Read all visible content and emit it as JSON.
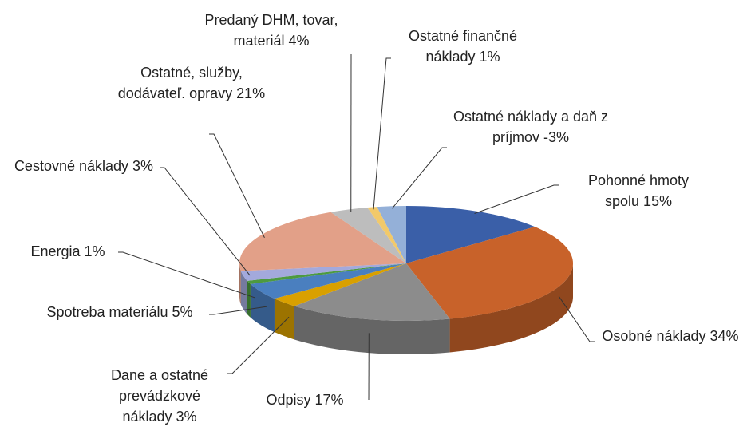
{
  "chart_data": {
    "type": "pie3d",
    "categories": [
      "Pohonné hmoty spolu",
      "Osobné náklady",
      "Odpisy",
      "Dane a ostatné prevádzkové náklady",
      "Spotreba materiálu",
      "Energia",
      "Cestovné náklady",
      "Ostatné, služby, dodávateľ. opravy",
      "Predaný DHM, tovar, materiál",
      "Ostatné finančné náklady",
      "Ostatné náklady a daň z príjmov"
    ],
    "values": [
      15,
      34,
      17,
      3,
      5,
      1,
      3,
      21,
      4,
      1,
      -3
    ],
    "value_labels": [
      "15%",
      "34%",
      "17%",
      "3%",
      "5%",
      "1%",
      "3%",
      "21%",
      "4%",
      "1%",
      "-3%"
    ],
    "colors": [
      "#3a5fa8",
      "#c8622a",
      "#8c8c8c",
      "#d9a000",
      "#4a7fbf",
      "#4d9a40",
      "#a3a9dc",
      "#e2a088",
      "#bdbdbd",
      "#f2c96a",
      "#94b0d8"
    ]
  }
}
